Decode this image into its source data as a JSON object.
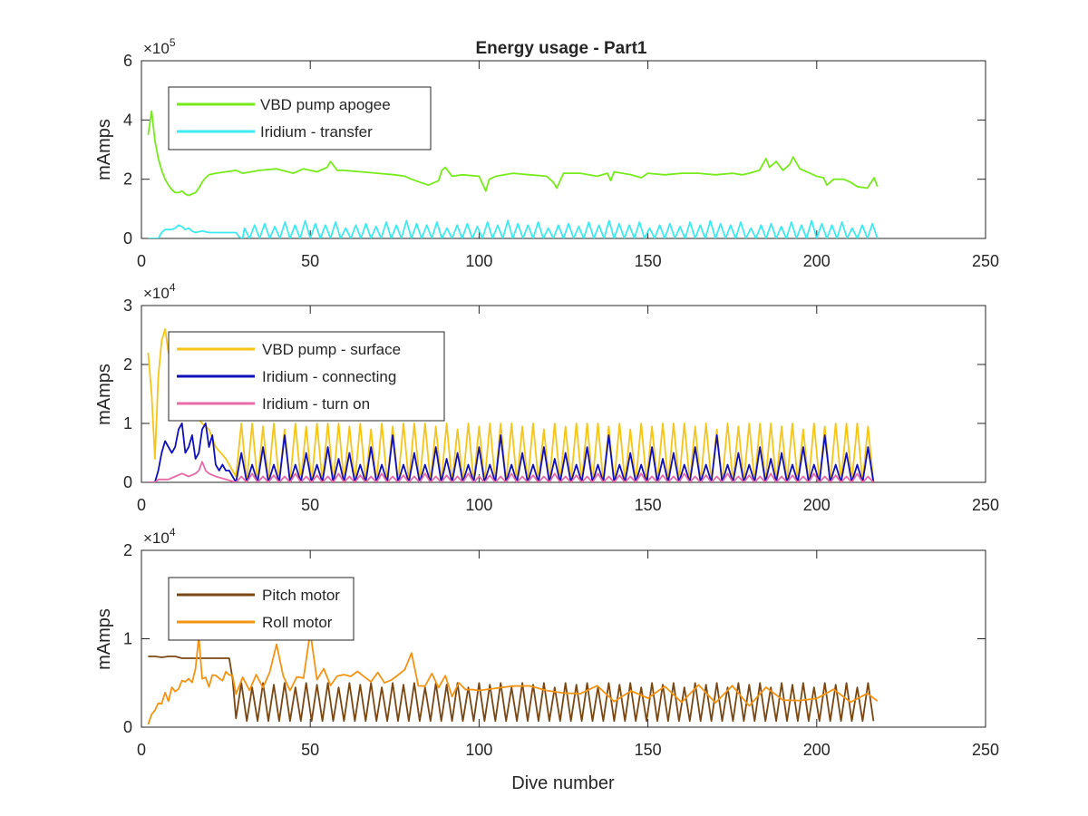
{
  "chart_data": [
    {
      "type": "line",
      "title": "Energy usage - Part1",
      "xlabel": "",
      "ylabel": "mAmps",
      "y_exponent": "×10^5",
      "y_multiplier_label": "×10",
      "y_exponent_power": "5",
      "xlim": [
        0,
        250
      ],
      "ylim": [
        0,
        6
      ],
      "xticks": [
        0,
        50,
        100,
        150,
        200,
        250
      ],
      "xtick_labels": [
        "0",
        "50",
        "100",
        "150",
        "200",
        "250"
      ],
      "yticks": [
        0,
        2,
        4,
        6
      ],
      "ytick_labels": [
        "0",
        "2",
        "4",
        "6"
      ],
      "legend_position": "top-left",
      "series": [
        {
          "name": "VBD pump apogee",
          "color": "#77ea1b",
          "x": [
            2,
            3,
            4,
            5,
            6,
            7,
            8,
            9,
            10,
            11,
            12,
            13,
            14,
            15,
            16,
            17,
            18,
            19,
            20,
            22,
            25,
            28,
            30,
            35,
            40,
            45,
            48,
            50,
            52,
            55,
            56,
            58,
            60,
            65,
            70,
            75,
            78,
            80,
            85,
            88,
            89,
            90,
            92,
            95,
            100,
            102,
            103,
            105,
            110,
            115,
            120,
            122,
            123,
            125,
            130,
            135,
            138,
            139,
            140,
            145,
            148,
            150,
            155,
            160,
            165,
            170,
            175,
            178,
            180,
            183,
            185,
            186,
            188,
            190,
            192,
            193,
            195,
            198,
            200,
            202,
            203,
            205,
            208,
            210,
            212,
            215,
            217,
            218
          ],
          "y": [
            3.5,
            4.3,
            3.3,
            2.7,
            2.3,
            2.0,
            1.8,
            1.65,
            1.55,
            1.55,
            1.6,
            1.5,
            1.45,
            1.5,
            1.55,
            1.7,
            1.9,
            2.05,
            2.15,
            2.2,
            2.25,
            2.3,
            2.2,
            2.3,
            2.35,
            2.2,
            2.35,
            2.3,
            2.25,
            2.4,
            2.6,
            2.3,
            2.3,
            2.25,
            2.2,
            2.15,
            2.1,
            2.0,
            1.8,
            1.95,
            2.3,
            2.4,
            2.1,
            2.15,
            2.1,
            1.6,
            2.0,
            2.1,
            2.2,
            2.15,
            2.1,
            1.9,
            1.7,
            2.2,
            2.2,
            2.1,
            2.2,
            1.95,
            2.25,
            2.15,
            2.05,
            2.2,
            2.15,
            2.2,
            2.2,
            2.15,
            2.2,
            2.15,
            2.2,
            2.3,
            2.7,
            2.4,
            2.6,
            2.3,
            2.5,
            2.75,
            2.35,
            2.2,
            2.1,
            2.05,
            1.8,
            2.0,
            2.0,
            1.9,
            1.75,
            1.7,
            2.05,
            1.75
          ]
        },
        {
          "name": "Iridium - transfer",
          "color": "#3ceaf1",
          "x": [
            2,
            3,
            4,
            5,
            6,
            7,
            8,
            9,
            10,
            11,
            12,
            13,
            14,
            15,
            16,
            18,
            20,
            25,
            28,
            29,
            30
          ],
          "y": [
            0,
            0,
            0,
            0,
            0.2,
            0.3,
            0.3,
            0.3,
            0.35,
            0.45,
            0.4,
            0.3,
            0.35,
            0.25,
            0.2,
            0.25,
            0.2,
            0.2,
            0.2,
            0.05,
            0
          ],
          "periodic_from": 29,
          "periodic_to": 218,
          "period": 3,
          "peak_values": [
            0.35,
            0.45,
            0.5,
            0.4,
            0.55,
            0.45,
            0.6,
            0.5,
            0.45,
            0.55
          ]
        }
      ]
    },
    {
      "type": "line",
      "title": "",
      "xlabel": "",
      "ylabel": "mAmps",
      "y_exponent": "×10^4",
      "y_multiplier_label": "×10",
      "y_exponent_power": "4",
      "xlim": [
        0,
        250
      ],
      "ylim": [
        0,
        3
      ],
      "xticks": [
        0,
        50,
        100,
        150,
        200,
        250
      ],
      "xtick_labels": [
        "0",
        "50",
        "100",
        "150",
        "200",
        "250"
      ],
      "yticks": [
        0,
        1,
        2,
        3
      ],
      "ytick_labels": [
        "0",
        "1",
        "2",
        "3"
      ],
      "legend_position": "top-left",
      "series": [
        {
          "name": "VBD pump - surface",
          "color": "#f5c518",
          "x": [
            2,
            3,
            4,
            5,
            6,
            7,
            8,
            10,
            12,
            15,
            18,
            20,
            22,
            25,
            27,
            28
          ],
          "y": [
            2.2,
            1.5,
            0.4,
            1.8,
            2.4,
            2.6,
            2.2,
            1.8,
            1.5,
            1.2,
            1.0,
            0.9,
            0.6,
            0.4,
            0.2,
            0.1
          ],
          "periodic_from": 28,
          "periodic_to": 218,
          "period": 3.2,
          "peak_values": [
            1.0,
            1.0,
            0.95,
            1.0,
            0.9,
            1.0,
            0.95,
            1.0
          ]
        },
        {
          "name": "Iridium - connecting",
          "color": "#1010b8",
          "x": [
            2,
            4,
            5,
            6,
            7,
            8,
            9,
            10,
            11,
            12,
            13,
            14,
            15,
            16,
            17,
            18,
            19,
            20,
            21,
            22,
            23,
            24,
            25,
            26,
            27,
            28
          ],
          "y": [
            0,
            0,
            0.2,
            0.5,
            0.7,
            0.6,
            0.5,
            0.6,
            0.9,
            1.0,
            0.5,
            0.6,
            0.8,
            0.4,
            0.5,
            0.9,
            1.0,
            0.6,
            0.8,
            0.3,
            0.2,
            0.3,
            0.2,
            0.2,
            0.1,
            0
          ],
          "periodic_from": 28,
          "periodic_to": 218,
          "period": 3.2,
          "peak_values": [
            0.5,
            0.3,
            0.6,
            0.3,
            0.8,
            0.3,
            0.5,
            0.3,
            0.6,
            0.4
          ]
        },
        {
          "name": "Iridium - turn on",
          "color": "#e86aa6",
          "x": [
            2,
            4,
            5,
            8,
            10,
            12,
            14,
            16,
            17,
            18,
            19,
            20,
            22,
            25,
            28
          ],
          "y": [
            0,
            0,
            0.05,
            0.05,
            0.1,
            0.15,
            0.1,
            0.15,
            0.2,
            0.35,
            0.2,
            0.15,
            0.1,
            0.05,
            0
          ],
          "periodic_from": 28,
          "periodic_to": 218,
          "period": 3.2,
          "peak_values": [
            0.1,
            0.15,
            0.1,
            0.12
          ]
        }
      ]
    },
    {
      "type": "line",
      "title": "",
      "xlabel": "Dive number",
      "ylabel": "mAmps",
      "y_exponent": "×10^4",
      "y_multiplier_label": "×10",
      "y_exponent_power": "4",
      "xlim": [
        0,
        250
      ],
      "ylim": [
        0,
        2
      ],
      "xticks": [
        0,
        50,
        100,
        150,
        200,
        250
      ],
      "xtick_labels": [
        "0",
        "50",
        "100",
        "150",
        "200",
        "250"
      ],
      "yticks": [
        0,
        1,
        2
      ],
      "ytick_labels": [
        "0",
        "1",
        "2"
      ],
      "legend_position": "top-left",
      "series": [
        {
          "name": "Pitch motor",
          "color": "#7a4712",
          "x": [
            2,
            4,
            6,
            8,
            10,
            12,
            14,
            16,
            18,
            20,
            22,
            24,
            26,
            27,
            28
          ],
          "y": [
            0.8,
            0.8,
            0.79,
            0.8,
            0.8,
            0.78,
            0.78,
            0.78,
            0.78,
            0.78,
            0.78,
            0.78,
            0.78,
            0.55,
            0.1
          ],
          "periodic_from": 28,
          "periodic_to": 218,
          "period": 3.2,
          "peak_values": [
            0.5,
            0.45,
            0.5,
            0.48
          ],
          "trough_value": 0.07
        },
        {
          "name": "Roll motor",
          "color": "#f39312",
          "x": [
            2,
            3,
            4,
            5,
            6,
            7,
            8,
            9,
            10,
            11,
            12,
            13,
            14,
            15,
            16,
            17,
            18,
            19,
            20,
            21,
            22,
            23,
            24,
            25,
            26,
            27,
            28,
            30,
            32,
            34,
            36,
            38,
            40,
            42,
            44,
            46,
            48,
            50,
            52,
            54,
            56,
            58,
            60,
            62,
            64,
            66,
            68,
            70,
            72,
            74,
            76,
            78,
            80,
            82,
            84,
            86,
            88,
            90,
            92,
            94,
            96,
            98,
            100,
            105,
            110,
            115,
            120,
            125,
            130,
            135,
            140,
            145,
            150,
            155,
            160,
            165,
            170,
            175,
            180,
            185,
            190,
            195,
            200,
            205,
            210,
            215,
            218
          ],
          "y": [
            0.07,
            0.1,
            0.2,
            0.25,
            0.3,
            0.35,
            0.3,
            0.38,
            0.45,
            0.4,
            0.55,
            0.45,
            0.6,
            0.5,
            0.7,
            1.0,
            0.6,
            0.55,
            0.5,
            0.55,
            0.6,
            0.55,
            0.6,
            0.55,
            0.6,
            0.55,
            0.45,
            0.55,
            0.45,
            0.55,
            0.5,
            0.6,
            0.95,
            0.5,
            0.45,
            0.55,
            0.6,
            1.05,
            0.55,
            0.6,
            0.5,
            0.55,
            0.6,
            0.5,
            0.65,
            0.5,
            0.55,
            0.6,
            0.55,
            0.5,
            0.65,
            0.6,
            0.85,
            0.45,
            0.5,
            0.6,
            0.45,
            0.55,
            0.4,
            0.45,
            0.5,
            0.4,
            0.45,
            0.4,
            0.5,
            0.4,
            0.45,
            0.35,
            0.4,
            0.45,
            0.35,
            0.4,
            0.35,
            0.4,
            0.35,
            0.4,
            0.35,
            0.4,
            0.3,
            0.4,
            0.35,
            0.3,
            0.35,
            0.4,
            0.3,
            0.35,
            0.35
          ],
          "jitter": 0.08
        }
      ]
    }
  ]
}
